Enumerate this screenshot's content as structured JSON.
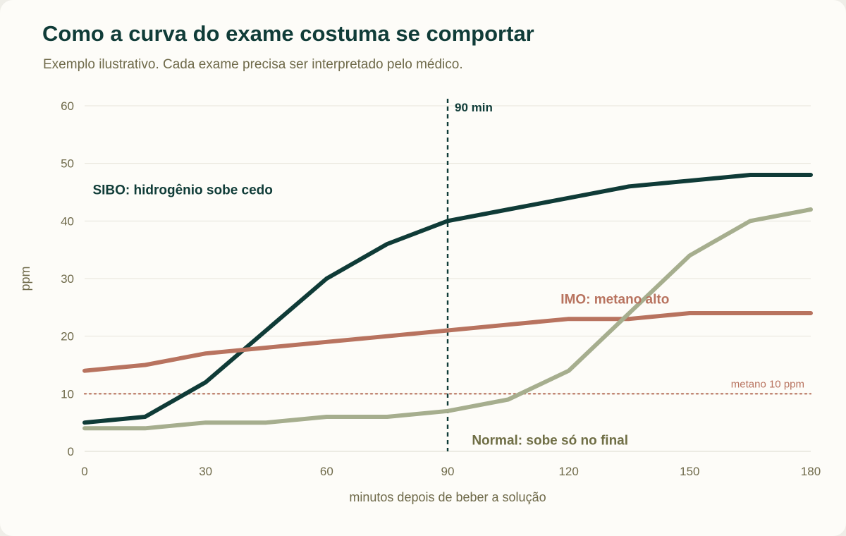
{
  "title": "Como a curva do exame costuma se comportar",
  "subtitle": "Exemplo ilustrativo. Cada exame precisa ser interpretado pelo médico.",
  "chart_data": {
    "type": "line",
    "xlabel": "minutos depois de beber a solução",
    "ylabel": "ppm",
    "xlim": [
      0,
      180
    ],
    "ylim": [
      0,
      60
    ],
    "x_ticks": [
      0,
      30,
      60,
      90,
      120,
      150,
      180
    ],
    "y_ticks": [
      0,
      10,
      20,
      30,
      40,
      50,
      60
    ],
    "grid": "horizontal",
    "x": [
      0,
      15,
      30,
      45,
      60,
      75,
      90,
      105,
      120,
      135,
      150,
      165,
      180
    ],
    "series": [
      {
        "key": "sibo",
        "color": "#0f3b37",
        "values": [
          5,
          6,
          12,
          21,
          30,
          36,
          40,
          42,
          44,
          46,
          47,
          48,
          48
        ],
        "annotation": "SIBO: hidrogênio sobe cedo",
        "annotation_at": [
          2,
          45.5
        ]
      },
      {
        "key": "imo",
        "color": "#b8735f",
        "values": [
          14,
          15,
          17,
          18,
          19,
          20,
          21,
          22,
          23,
          23,
          24,
          24,
          24
        ],
        "annotation": "IMO: metano alto",
        "annotation_at": [
          118,
          26.5
        ]
      },
      {
        "key": "normal",
        "color": "#a6ae8e",
        "values": [
          4,
          4,
          5,
          5,
          6,
          6,
          7,
          9,
          14,
          24,
          34,
          40,
          42
        ],
        "annotation": "Normal: sobe só no final",
        "annotation_at": [
          96,
          2
        ]
      }
    ],
    "vline": {
      "x": 90,
      "label": "90 min",
      "color": "#103c38"
    },
    "hline": {
      "y": 10,
      "label": "metano 10 ppm",
      "color": "#b8735f"
    },
    "annotation_colors": {
      "sibo": "#103c38",
      "imo": "#b8735f",
      "normal": "#6f6e45"
    }
  }
}
